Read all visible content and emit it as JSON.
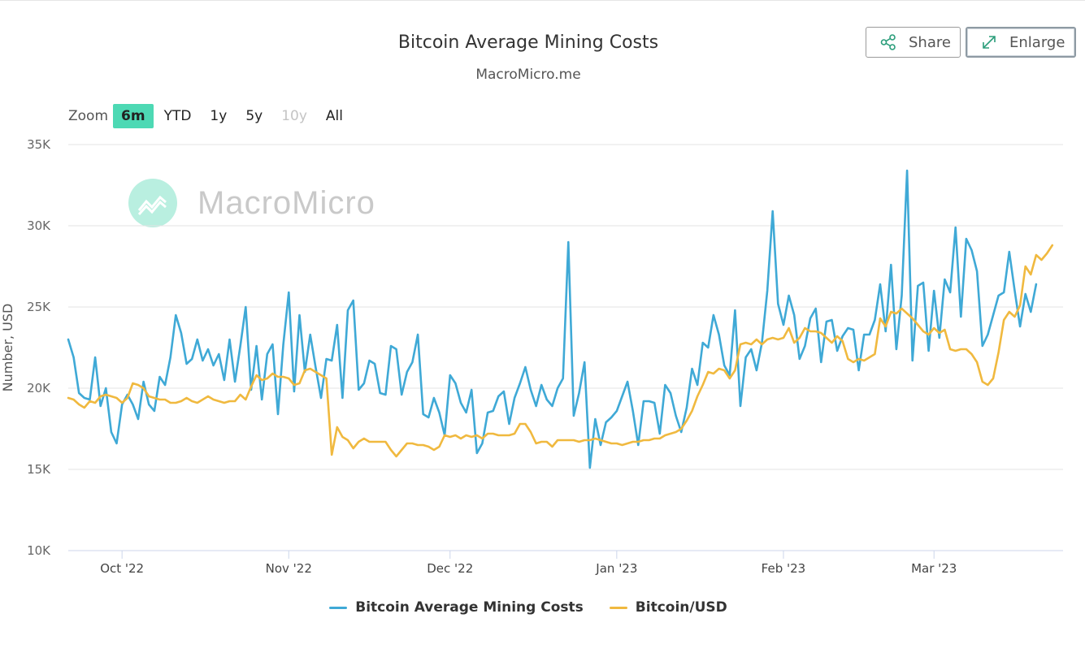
{
  "header": {
    "title": "Bitcoin Average Mining Costs",
    "subtitle": "MacroMicro.me",
    "share_label": "Share",
    "enlarge_label": "Enlarge"
  },
  "zoom": {
    "label": "Zoom",
    "options": [
      "6m",
      "YTD",
      "1y",
      "5y",
      "10y",
      "All"
    ],
    "active": "6m",
    "disabled": [
      "10y"
    ]
  },
  "watermark": {
    "text": "MacroMicro"
  },
  "chart_data": {
    "type": "line",
    "title": "Bitcoin Average Mining Costs",
    "subtitle": "MacroMicro.me",
    "ylabel": "Number, USD",
    "ylim": [
      10000,
      35000
    ],
    "yticks": [
      10000,
      15000,
      20000,
      25000,
      30000,
      35000
    ],
    "ytick_labels": [
      "10K",
      "15K",
      "20K",
      "25K",
      "30K",
      "35K"
    ],
    "xlim": [
      "2022-09-21",
      "2023-03-25"
    ],
    "xticks": [
      "2022-10-01",
      "2022-11-01",
      "2022-12-01",
      "2023-01-01",
      "2023-02-01",
      "2023-03-01"
    ],
    "xtick_labels": [
      "Oct '22",
      "Nov '22",
      "Dec '22",
      "Jan '23",
      "Feb '23",
      "Mar '23"
    ],
    "grid": true,
    "legend_position": "bottom",
    "series": [
      {
        "name": "Bitcoin Average Mining Costs",
        "color": "#3fa9d6",
        "start_date": "2022-09-21",
        "step_days": 1,
        "values": [
          23000,
          21900,
          19700,
          19400,
          19300,
          21900,
          18900,
          20000,
          17300,
          16600,
          19000,
          19600,
          19000,
          18100,
          20400,
          19000,
          18600,
          20700,
          20200,
          21900,
          24500,
          23400,
          21500,
          21800,
          23000,
          21700,
          22400,
          21400,
          22100,
          20500,
          23000,
          20400,
          22600,
          25000,
          19900,
          22600,
          19300,
          22100,
          22700,
          18400,
          22700,
          25900,
          19800,
          24500,
          21000,
          23300,
          21300,
          19400,
          21800,
          21700,
          23900,
          19400,
          24800,
          25400,
          19900,
          20300,
          21700,
          21500,
          19700,
          19600,
          22600,
          22400,
          19600,
          21000,
          21600,
          23300,
          18400,
          18200,
          19400,
          18500,
          17100,
          20800,
          20300,
          19100,
          18500,
          19900,
          16000,
          16600,
          18500,
          18600,
          19500,
          19800,
          17800,
          19400,
          20300,
          21300,
          19900,
          18900,
          20200,
          19300,
          18900,
          20000,
          20600,
          29000,
          18300,
          19700,
          21600,
          15100,
          18100,
          16500,
          17900,
          18200,
          18600,
          19500,
          20400,
          18600,
          16500,
          19200,
          19200,
          19100,
          17200,
          20200,
          19700,
          18300,
          17300,
          18800,
          21200,
          20200,
          22800,
          22500,
          24500,
          23300,
          21400,
          20800,
          24800,
          18900,
          21900,
          22400,
          21100,
          22800,
          26000,
          30900,
          25200,
          23900,
          25700,
          24500,
          21800,
          22600,
          24300,
          24900,
          21600,
          24100,
          24200,
          22300,
          23200,
          23700,
          23600,
          21100,
          23300,
          23300,
          24200,
          26400,
          23500,
          27600,
          22400,
          25700,
          33400,
          21700,
          26300,
          26500,
          22300,
          26000,
          23100,
          26700,
          25900,
          29900,
          24400,
          29200,
          28500,
          27200,
          22600,
          23300,
          24500,
          25700,
          25900,
          28400,
          26000,
          23800,
          25800,
          24700,
          26400
        ]
      },
      {
        "name": "Bitcoin/USD",
        "color": "#f0b93f",
        "start_date": "2022-09-21",
        "step_days": 1,
        "values": [
          19400,
          19300,
          19000,
          18800,
          19200,
          19100,
          19500,
          19600,
          19500,
          19400,
          19100,
          19400,
          20300,
          20200,
          20000,
          19500,
          19400,
          19300,
          19300,
          19100,
          19100,
          19200,
          19400,
          19200,
          19100,
          19300,
          19500,
          19300,
          19200,
          19100,
          19200,
          19200,
          19600,
          19300,
          20100,
          20800,
          20500,
          20600,
          20900,
          20700,
          20700,
          20600,
          20200,
          20300,
          21100,
          21200,
          21000,
          20800,
          20600,
          15900,
          17600,
          17000,
          16800,
          16300,
          16700,
          16900,
          16700,
          16700,
          16700,
          16700,
          16200,
          15800,
          16200,
          16600,
          16600,
          16500,
          16500,
          16400,
          16200,
          16400,
          17100,
          17000,
          17100,
          16900,
          17100,
          17000,
          17100,
          16900,
          17200,
          17200,
          17100,
          17100,
          17100,
          17200,
          17800,
          17800,
          17300,
          16600,
          16700,
          16700,
          16400,
          16800,
          16800,
          16800,
          16800,
          16700,
          16800,
          16800,
          16900,
          16800,
          16700,
          16600,
          16600,
          16500,
          16600,
          16700,
          16700,
          16800,
          16800,
          16900,
          16900,
          17100,
          17200,
          17300,
          17500,
          18000,
          18600,
          19500,
          20200,
          21000,
          20900,
          21200,
          21100,
          20600,
          21100,
          22700,
          22800,
          22700,
          23000,
          22700,
          23000,
          23100,
          23000,
          23100,
          23700,
          22800,
          23100,
          23700,
          23500,
          23500,
          23400,
          23100,
          22800,
          23200,
          22900,
          21800,
          21600,
          21800,
          21700,
          21900,
          22100,
          24300,
          23800,
          24700,
          24600,
          24900,
          24600,
          24300,
          23900,
          23500,
          23300,
          23700,
          23400,
          23600,
          22400,
          22300,
          22400,
          22400,
          22100,
          21600,
          20400,
          20200,
          20600,
          22200,
          24200,
          24700,
          24400,
          25100,
          27500,
          27000,
          28200,
          27900,
          28300,
          28800
        ]
      }
    ]
  }
}
